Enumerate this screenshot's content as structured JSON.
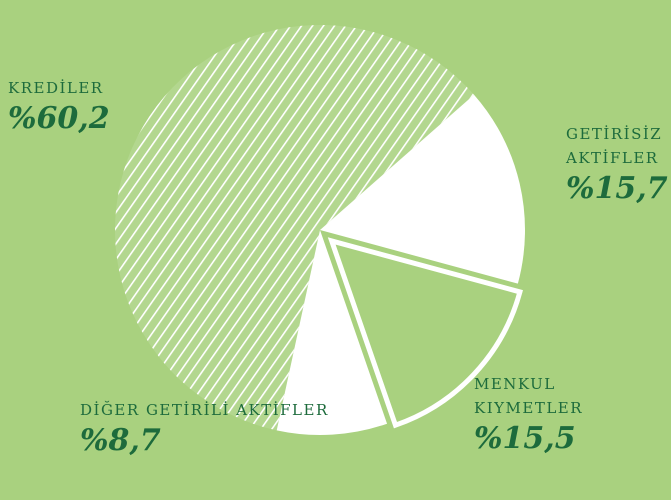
{
  "chart_data": {
    "type": "pie",
    "categories": [
      "KREDİLER",
      "GETİRİSİZ AKTİFLER",
      "MENKUL KIYMETLER",
      "DİĞER GETİRİLİ AKTİFLER"
    ],
    "values": [
      60.2,
      15.7,
      15.5,
      8.7
    ],
    "value_labels": [
      "%60,2",
      "%15,7",
      "%15,5",
      "%8,7"
    ]
  }
}
